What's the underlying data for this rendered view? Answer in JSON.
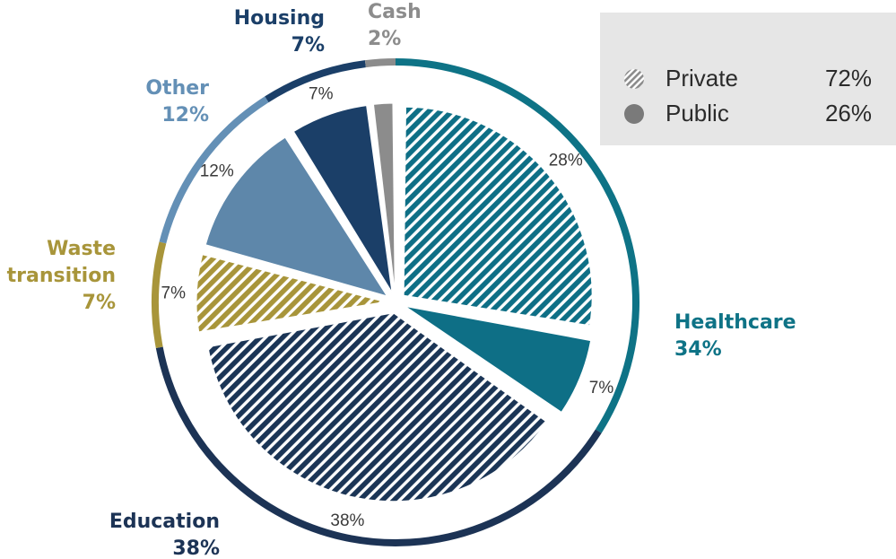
{
  "chart_data": {
    "type": "pie",
    "slices": [
      {
        "label": "",
        "value": 28,
        "pct_label": "28%",
        "group": "Healthcare",
        "kind": "private",
        "color": "#0e6f86"
      },
      {
        "label": "",
        "value": 7,
        "pct_label": "7%",
        "group": "Healthcare",
        "kind": "public",
        "color": "#0e6f86"
      },
      {
        "label": "",
        "value": 38,
        "pct_label": "38%",
        "group": "Education",
        "kind": "private",
        "color": "#1b3556"
      },
      {
        "label": "",
        "value": 7,
        "pct_label": "7%",
        "group": "Waste transition",
        "kind": "private",
        "color": "#a8953a"
      },
      {
        "label": "",
        "value": 12,
        "pct_label": "12%",
        "group": "Other",
        "kind": "public",
        "color": "#5e87aa"
      },
      {
        "label": "",
        "value": 7,
        "pct_label": "7%",
        "group": "Housing",
        "kind": "public",
        "color": "#1b3f68"
      },
      {
        "label": "",
        "value": 2,
        "pct_label": "",
        "group": "Cash",
        "kind": "public",
        "color": "#8c8c8c"
      }
    ],
    "groups": [
      {
        "name": "Healthcare",
        "line1": "Healthcare",
        "line2": "34%",
        "value": 34,
        "color": "#0e7386"
      },
      {
        "name": "Education",
        "line1": "Education",
        "line2": "38%",
        "value": 38,
        "color": "#1c3355"
      },
      {
        "name": "Waste transition",
        "line1": "Waste",
        "line2": "transition",
        "line3": "7%",
        "value": 7,
        "color": "#a8953a"
      },
      {
        "name": "Other",
        "line1": "Other",
        "line2": "12%",
        "value": 12,
        "color": "#6490b6"
      },
      {
        "name": "Housing",
        "line1": "Housing",
        "line2": "7%",
        "value": 7,
        "color": "#1b3f68"
      },
      {
        "name": "Cash",
        "line1": "Cash",
        "line2": "2%",
        "value": 2,
        "color": "#8c8c8c"
      }
    ],
    "legend": [
      {
        "name": "Private",
        "value": "72%",
        "marker": "hatched-circle",
        "color": "#8c8c8c"
      },
      {
        "name": "Public",
        "value": "26%",
        "marker": "solid-circle",
        "color": "#7a7a7a"
      }
    ],
    "legend_placement": "top-right"
  }
}
